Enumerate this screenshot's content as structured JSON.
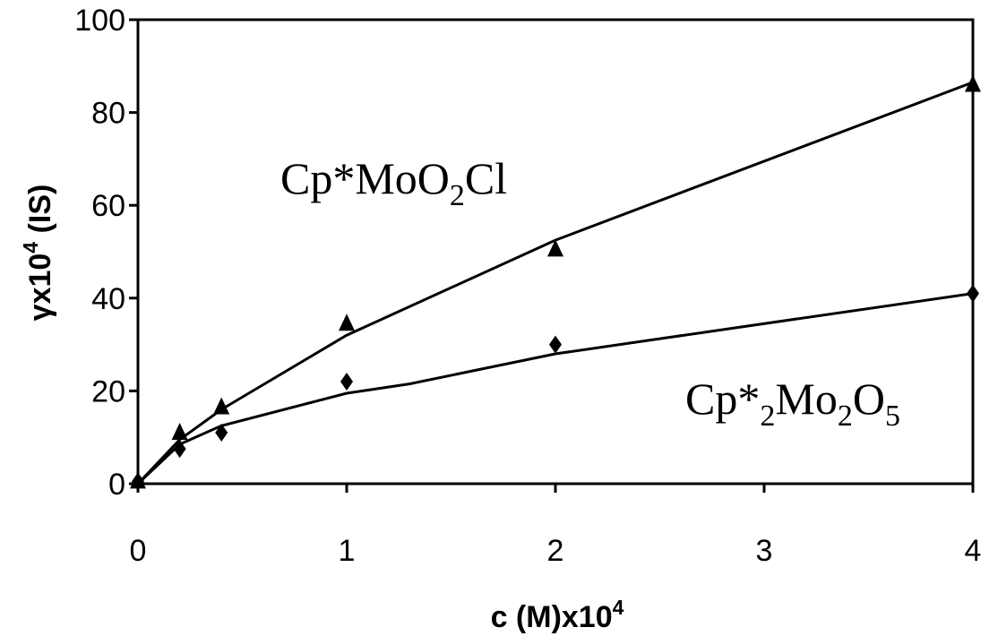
{
  "chart_data": {
    "type": "scatter",
    "xlabel": {
      "main": "c (M)x10",
      "sup": "4"
    },
    "ylabel": {
      "main": "γx10",
      "sup": "4",
      "tail": " (IS)"
    },
    "xlim": [
      0,
      4
    ],
    "ylim": [
      0,
      100
    ],
    "x_ticks": [
      "0",
      "1",
      "2",
      "3",
      "4"
    ],
    "y_ticks": [
      "0",
      "20",
      "40",
      "60",
      "80",
      "100"
    ],
    "grid": false,
    "series": [
      {
        "name": "Cp*MoO2Cl",
        "label": {
          "a": "Cp*MoO",
          "sub": "2",
          "b": "Cl"
        },
        "marker": "triangle",
        "points": [
          [
            0,
            0.5
          ],
          [
            0.2,
            11
          ],
          [
            0.4,
            16.5
          ],
          [
            1,
            34.5
          ],
          [
            2,
            50.5
          ],
          [
            4,
            86
          ]
        ],
        "fit": [
          [
            0,
            0
          ],
          [
            0.2,
            9.5
          ],
          [
            0.4,
            16
          ],
          [
            1,
            32
          ],
          [
            2,
            52.5
          ],
          [
            4,
            86.5
          ]
        ]
      },
      {
        "name": "Cp*2Mo2O5",
        "label": {
          "a": "Cp*",
          "sub1": "2",
          "b": "Mo",
          "sub2": "2",
          "c": "O",
          "sub3": "5"
        },
        "marker": "diamond",
        "points": [
          [
            0,
            0.5
          ],
          [
            0.2,
            7.5
          ],
          [
            0.4,
            11
          ],
          [
            1,
            22
          ],
          [
            2,
            30
          ],
          [
            4,
            41
          ]
        ],
        "fit": [
          [
            0,
            0
          ],
          [
            0.2,
            8.5
          ],
          [
            0.4,
            12.5
          ],
          [
            1,
            19.5
          ],
          [
            1.3,
            21.5
          ],
          [
            2,
            28
          ],
          [
            4,
            41
          ]
        ]
      }
    ]
  }
}
